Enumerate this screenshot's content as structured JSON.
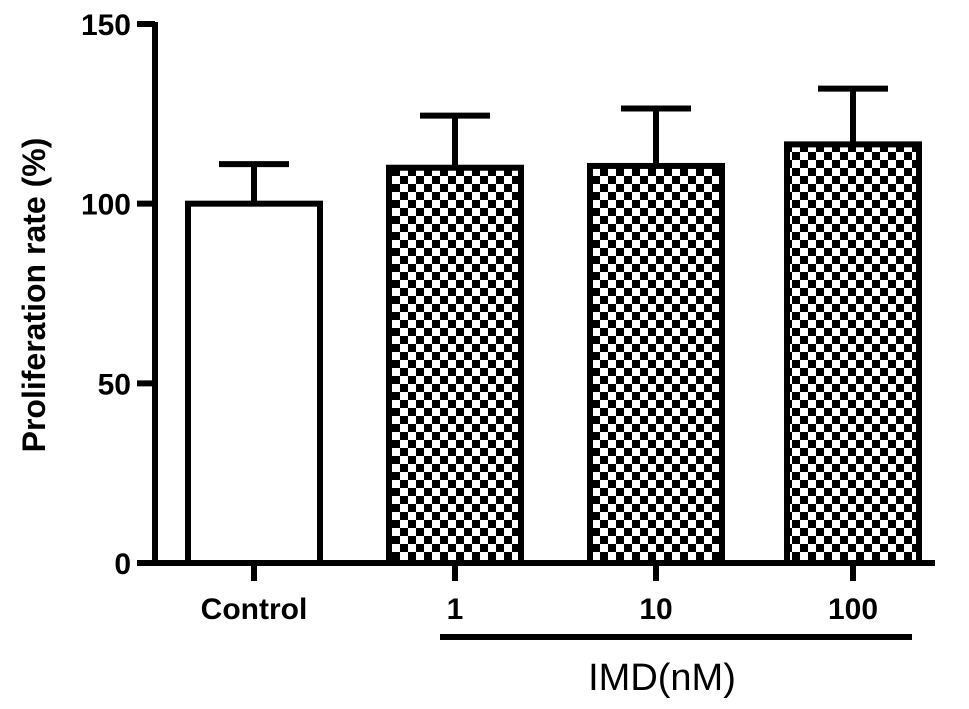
{
  "chart_data": {
    "type": "bar",
    "title": "",
    "xlabel": "",
    "ylabel": "Proliferation rate (%)",
    "ylim": [
      0,
      150
    ],
    "yticks": [
      0,
      50,
      100,
      150
    ],
    "categories": [
      "Control",
      "1",
      "10",
      "100"
    ],
    "values": [
      100,
      110,
      110.5,
      116.5
    ],
    "errors": [
      11,
      14.5,
      16,
      15.5
    ],
    "fills": [
      "solid-white",
      "checker",
      "checker",
      "checker"
    ],
    "group_label": "IMD(nM)",
    "grid": false,
    "legend": "none"
  }
}
